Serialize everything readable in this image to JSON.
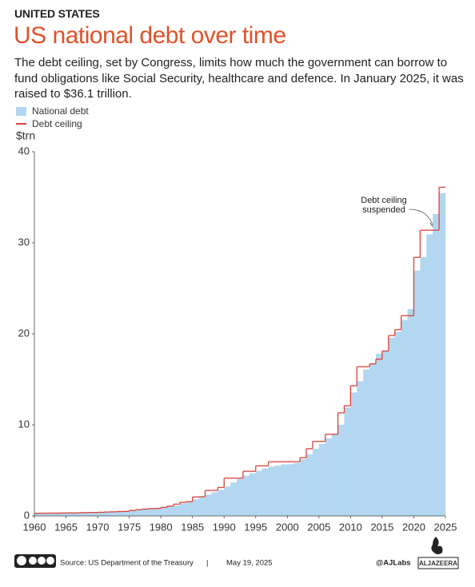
{
  "chart_data": {
    "type": "step-area",
    "kicker": "UNITED STATES",
    "title": "US national debt over time",
    "subtitle": "The debt ceiling, set by Congress, limits how much the government can borrow to fund obligations like Social Security, healthcare and defence. In January 2025, it was raised to $36.1 trillion.",
    "y_label": "$trn",
    "annotation": "Debt ceiling suspended",
    "source": "Source: US Department of the Treasury",
    "separator": "|",
    "date": "May 19, 2025",
    "handle": "@AJLabs",
    "logo": "ALJAZEERA",
    "x": [
      1960,
      1961,
      1962,
      1963,
      1964,
      1965,
      1966,
      1967,
      1968,
      1969,
      1970,
      1971,
      1972,
      1973,
      1974,
      1975,
      1976,
      1977,
      1978,
      1979,
      1980,
      1981,
      1982,
      1983,
      1984,
      1985,
      1986,
      1987,
      1988,
      1989,
      1990,
      1991,
      1992,
      1993,
      1994,
      1995,
      1996,
      1997,
      1998,
      1999,
      2000,
      2001,
      2002,
      2003,
      2004,
      2005,
      2006,
      2007,
      2008,
      2009,
      2010,
      2011,
      2012,
      2013,
      2014,
      2015,
      2016,
      2017,
      2018,
      2019,
      2020,
      2021,
      2022,
      2023,
      2024
    ],
    "series": [
      {
        "name": "National debt",
        "color": "#b3d7f0",
        "values": [
          0.29,
          0.29,
          0.3,
          0.31,
          0.32,
          0.32,
          0.33,
          0.34,
          0.37,
          0.37,
          0.38,
          0.41,
          0.44,
          0.47,
          0.49,
          0.58,
          0.65,
          0.71,
          0.78,
          0.83,
          0.91,
          1.0,
          1.14,
          1.37,
          1.57,
          1.82,
          2.13,
          2.35,
          2.6,
          2.86,
          3.23,
          3.67,
          4.06,
          4.41,
          4.69,
          4.97,
          5.22,
          5.41,
          5.53,
          5.66,
          5.67,
          5.81,
          6.23,
          6.78,
          7.38,
          7.93,
          8.51,
          9.01,
          10.02,
          11.91,
          13.56,
          14.79,
          16.07,
          16.74,
          17.82,
          18.15,
          19.57,
          20.24,
          21.52,
          22.72,
          26.95,
          28.43,
          30.93,
          33.17,
          35.46
        ]
      },
      {
        "name": "Debt ceiling",
        "color": "#d9433a",
        "values": [
          0.29,
          0.3,
          0.31,
          0.31,
          0.32,
          0.33,
          0.33,
          0.36,
          0.37,
          0.38,
          0.4,
          0.43,
          0.45,
          0.48,
          0.5,
          0.6,
          0.68,
          0.75,
          0.8,
          0.83,
          0.94,
          1.08,
          1.29,
          1.49,
          1.57,
          2.08,
          2.11,
          2.8,
          2.8,
          3.12,
          4.15,
          4.15,
          4.15,
          4.9,
          4.9,
          5.5,
          5.5,
          5.95,
          5.95,
          5.95,
          5.95,
          5.95,
          6.4,
          7.38,
          8.18,
          8.18,
          8.97,
          8.97,
          11.32,
          12.1,
          14.29,
          16.39,
          16.39,
          16.7,
          17.21,
          18.11,
          19.81,
          20.46,
          21.99,
          21.99,
          28.4,
          31.38,
          31.38,
          31.38,
          36.1
        ]
      }
    ],
    "xlim": [
      1960,
      2025
    ],
    "xticks": [
      1960,
      1965,
      1970,
      1975,
      1980,
      1985,
      1990,
      1995,
      2000,
      2005,
      2010,
      2015,
      2020,
      2025
    ],
    "ylim": [
      0,
      40
    ],
    "yticks": [
      0,
      10,
      20,
      30,
      40
    ],
    "grid": false
  }
}
